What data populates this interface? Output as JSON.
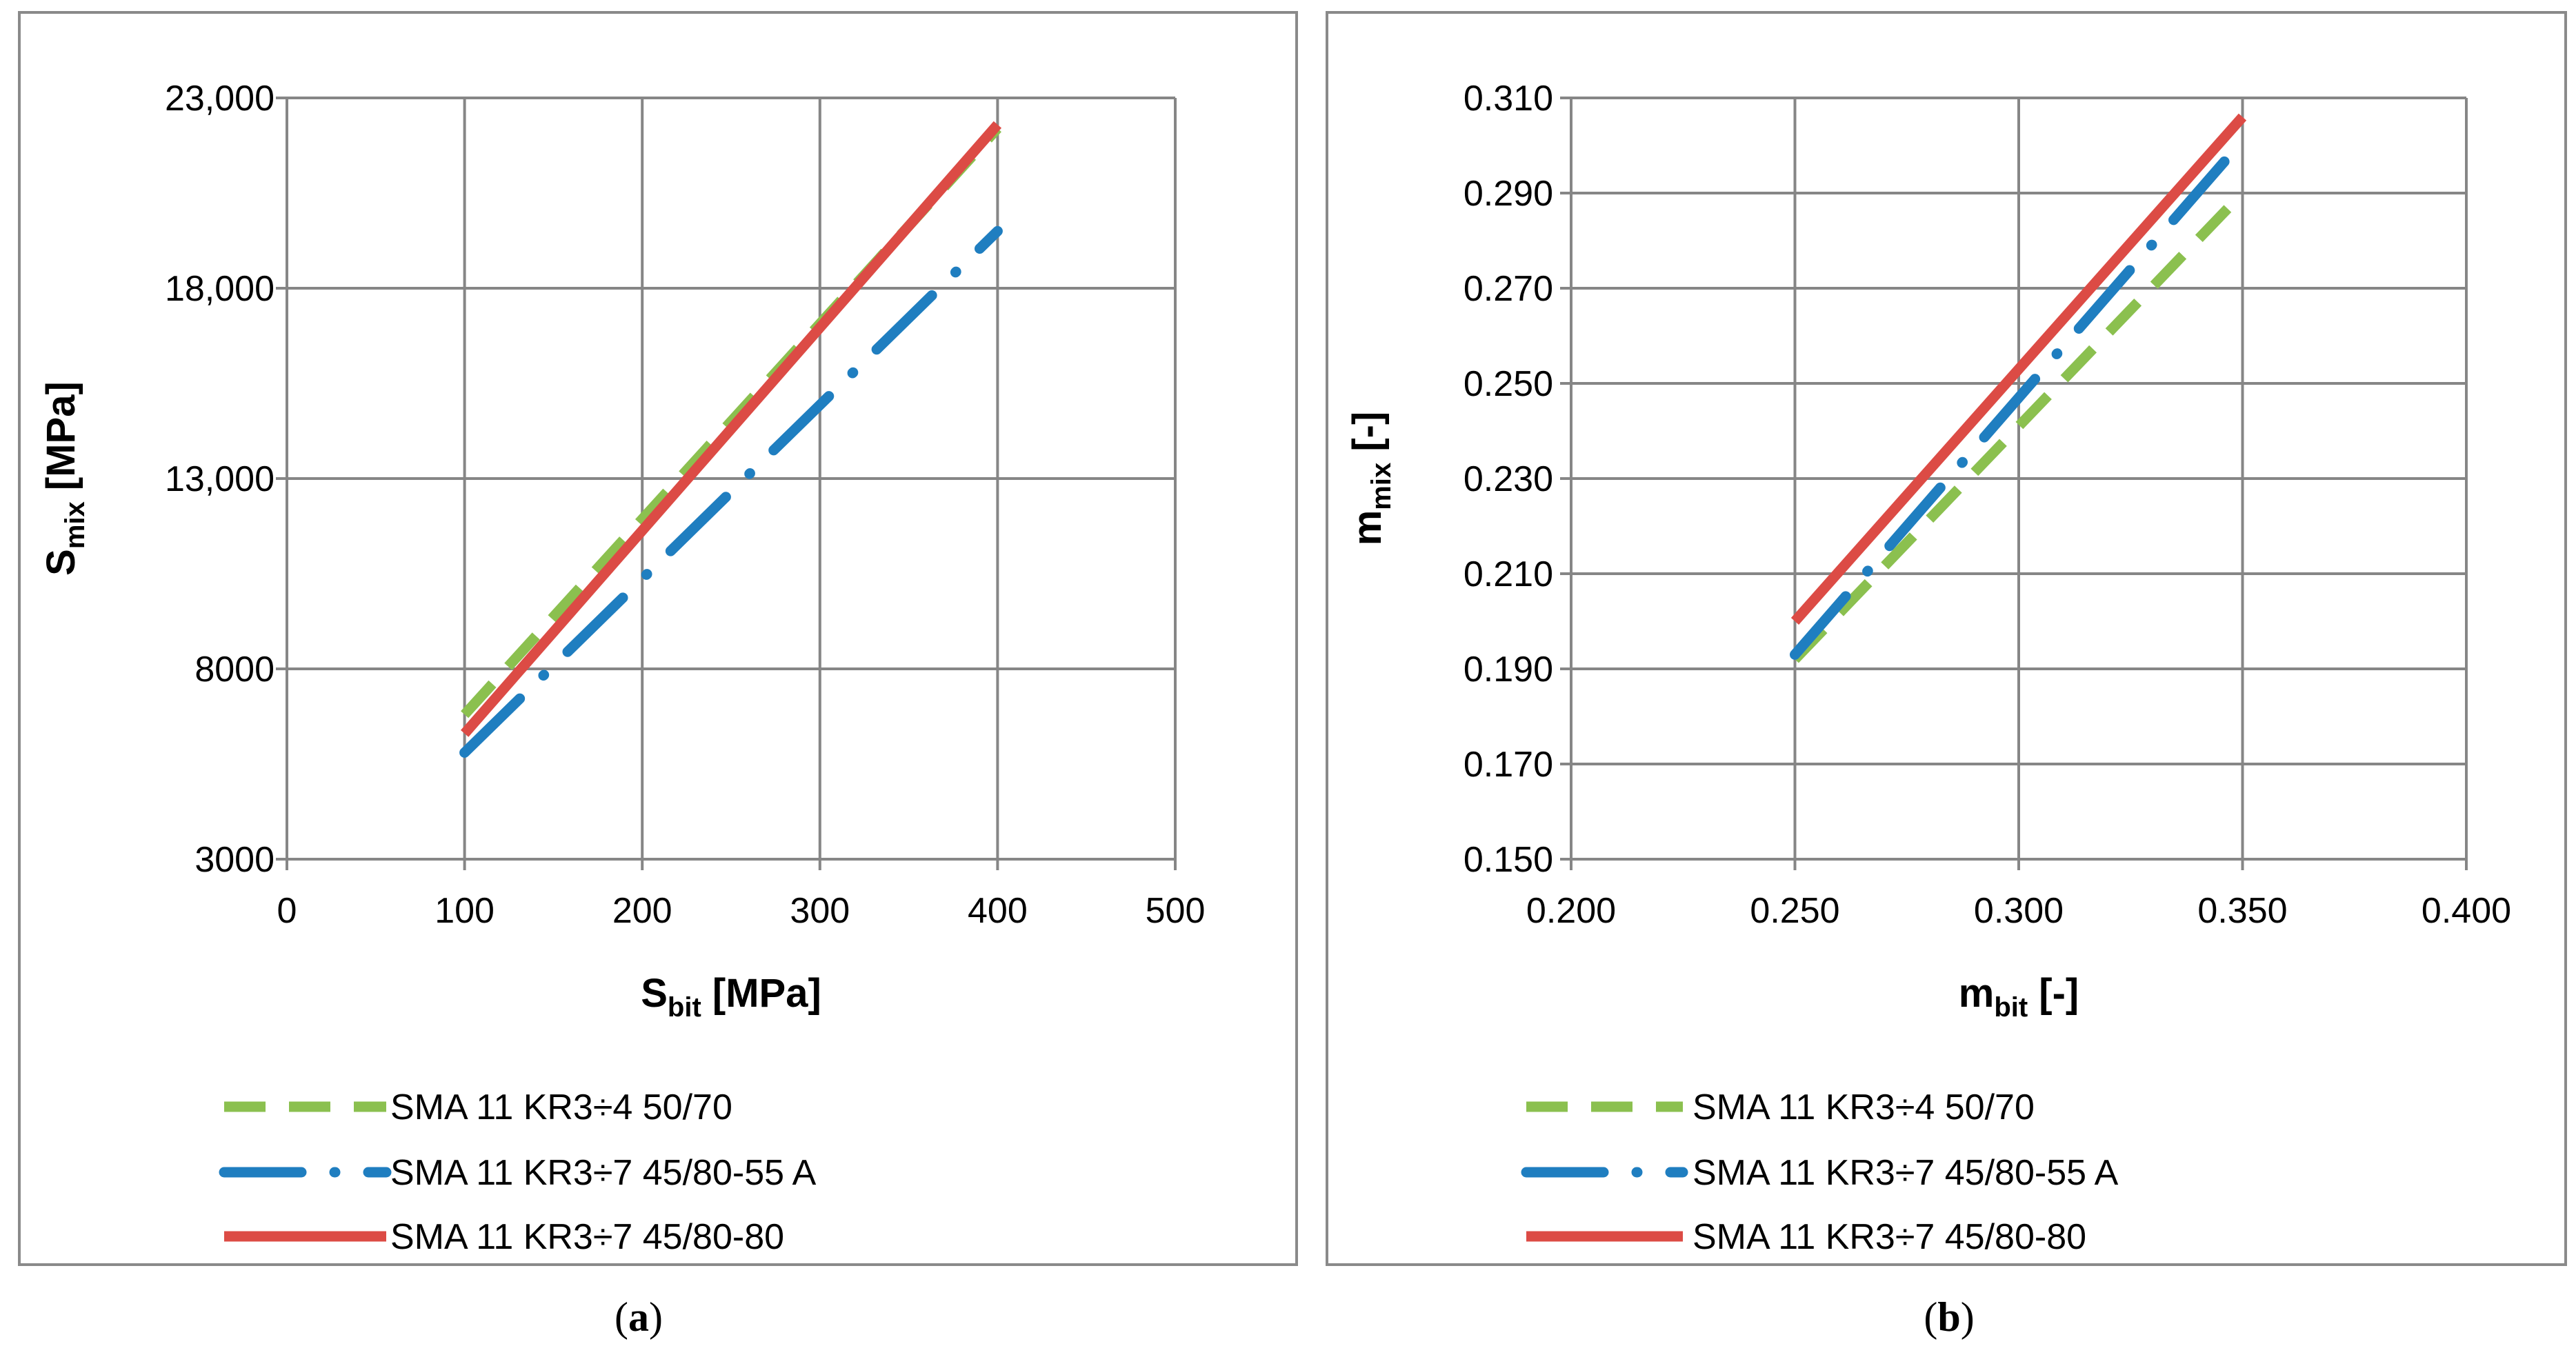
{
  "colors": {
    "green": "#8BC04F",
    "blue": "#1F7EC0",
    "red": "#DC4B45",
    "grid": "#868686",
    "axis": "#868686",
    "frame": "#8a8a8a",
    "text": "#000000"
  },
  "chart_data": [
    {
      "id": "a",
      "type": "line",
      "caption": "(a)",
      "xlabel_main": "S",
      "xlabel_sub": "bit",
      "xlabel_unit": " [MPa]",
      "ylabel_main": "S",
      "ylabel_sub": "mix",
      "ylabel_unit": " [MPa]",
      "xlim": [
        0,
        500
      ],
      "ylim": [
        3000,
        23000
      ],
      "x_ticks": [
        0,
        100,
        200,
        300,
        400,
        500
      ],
      "x_tick_labels": [
        "0",
        "100",
        "200",
        "300",
        "400",
        "500"
      ],
      "y_ticks": [
        3000,
        8000,
        13000,
        18000,
        23000
      ],
      "y_tick_labels": [
        "3000",
        "8000",
        "13,000",
        "18,000",
        "23,000"
      ],
      "grid": true,
      "legend_position": "bottom",
      "series": [
        {
          "name": "SMA 11 KR3÷4 50/70",
          "style": "dashed",
          "color_key": "green",
          "x": [
            100,
            400
          ],
          "y": [
            6800,
            22200
          ]
        },
        {
          "name": "SMA 11 KR3÷7 45/80-55 A",
          "style": "dashdot",
          "color_key": "blue",
          "x": [
            100,
            400
          ],
          "y": [
            5800,
            19500
          ]
        },
        {
          "name": "SMA 11 KR3÷7 45/80-80",
          "style": "solid",
          "color_key": "red",
          "x": [
            100,
            400
          ],
          "y": [
            6300,
            22300
          ]
        }
      ]
    },
    {
      "id": "b",
      "type": "line",
      "caption": "(b)",
      "xlabel_main": "m",
      "xlabel_sub": "bit",
      "xlabel_unit": " [-]",
      "ylabel_main": "m",
      "ylabel_sub": "mix",
      "ylabel_unit": " [-]",
      "xlim": [
        0.2,
        0.4
      ],
      "ylim": [
        0.15,
        0.31
      ],
      "x_ticks": [
        0.2,
        0.25,
        0.3,
        0.35,
        0.4
      ],
      "x_tick_labels": [
        "0.200",
        "0.250",
        "0.300",
        "0.350",
        "0.400"
      ],
      "y_ticks": [
        0.15,
        0.17,
        0.19,
        0.21,
        0.23,
        0.25,
        0.27,
        0.29,
        0.31
      ],
      "y_tick_labels": [
        "0.150",
        "0.170",
        "0.190",
        "0.210",
        "0.230",
        "0.250",
        "0.270",
        "0.290",
        "0.310"
      ],
      "grid": true,
      "legend_position": "bottom",
      "series": [
        {
          "name": "SMA 11 KR3÷4 50/70",
          "style": "dashed",
          "color_key": "green",
          "x": [
            0.25,
            0.35
          ],
          "y": [
            0.192,
            0.29
          ]
        },
        {
          "name": "SMA 11 KR3÷7 45/80-55 A",
          "style": "dashdot",
          "color_key": "blue",
          "x": [
            0.25,
            0.35
          ],
          "y": [
            0.193,
            0.301
          ]
        },
        {
          "name": "SMA 11 KR3÷7 45/80-80",
          "style": "solid",
          "color_key": "red",
          "x": [
            0.25,
            0.35
          ],
          "y": [
            0.2,
            0.306
          ]
        }
      ]
    }
  ]
}
